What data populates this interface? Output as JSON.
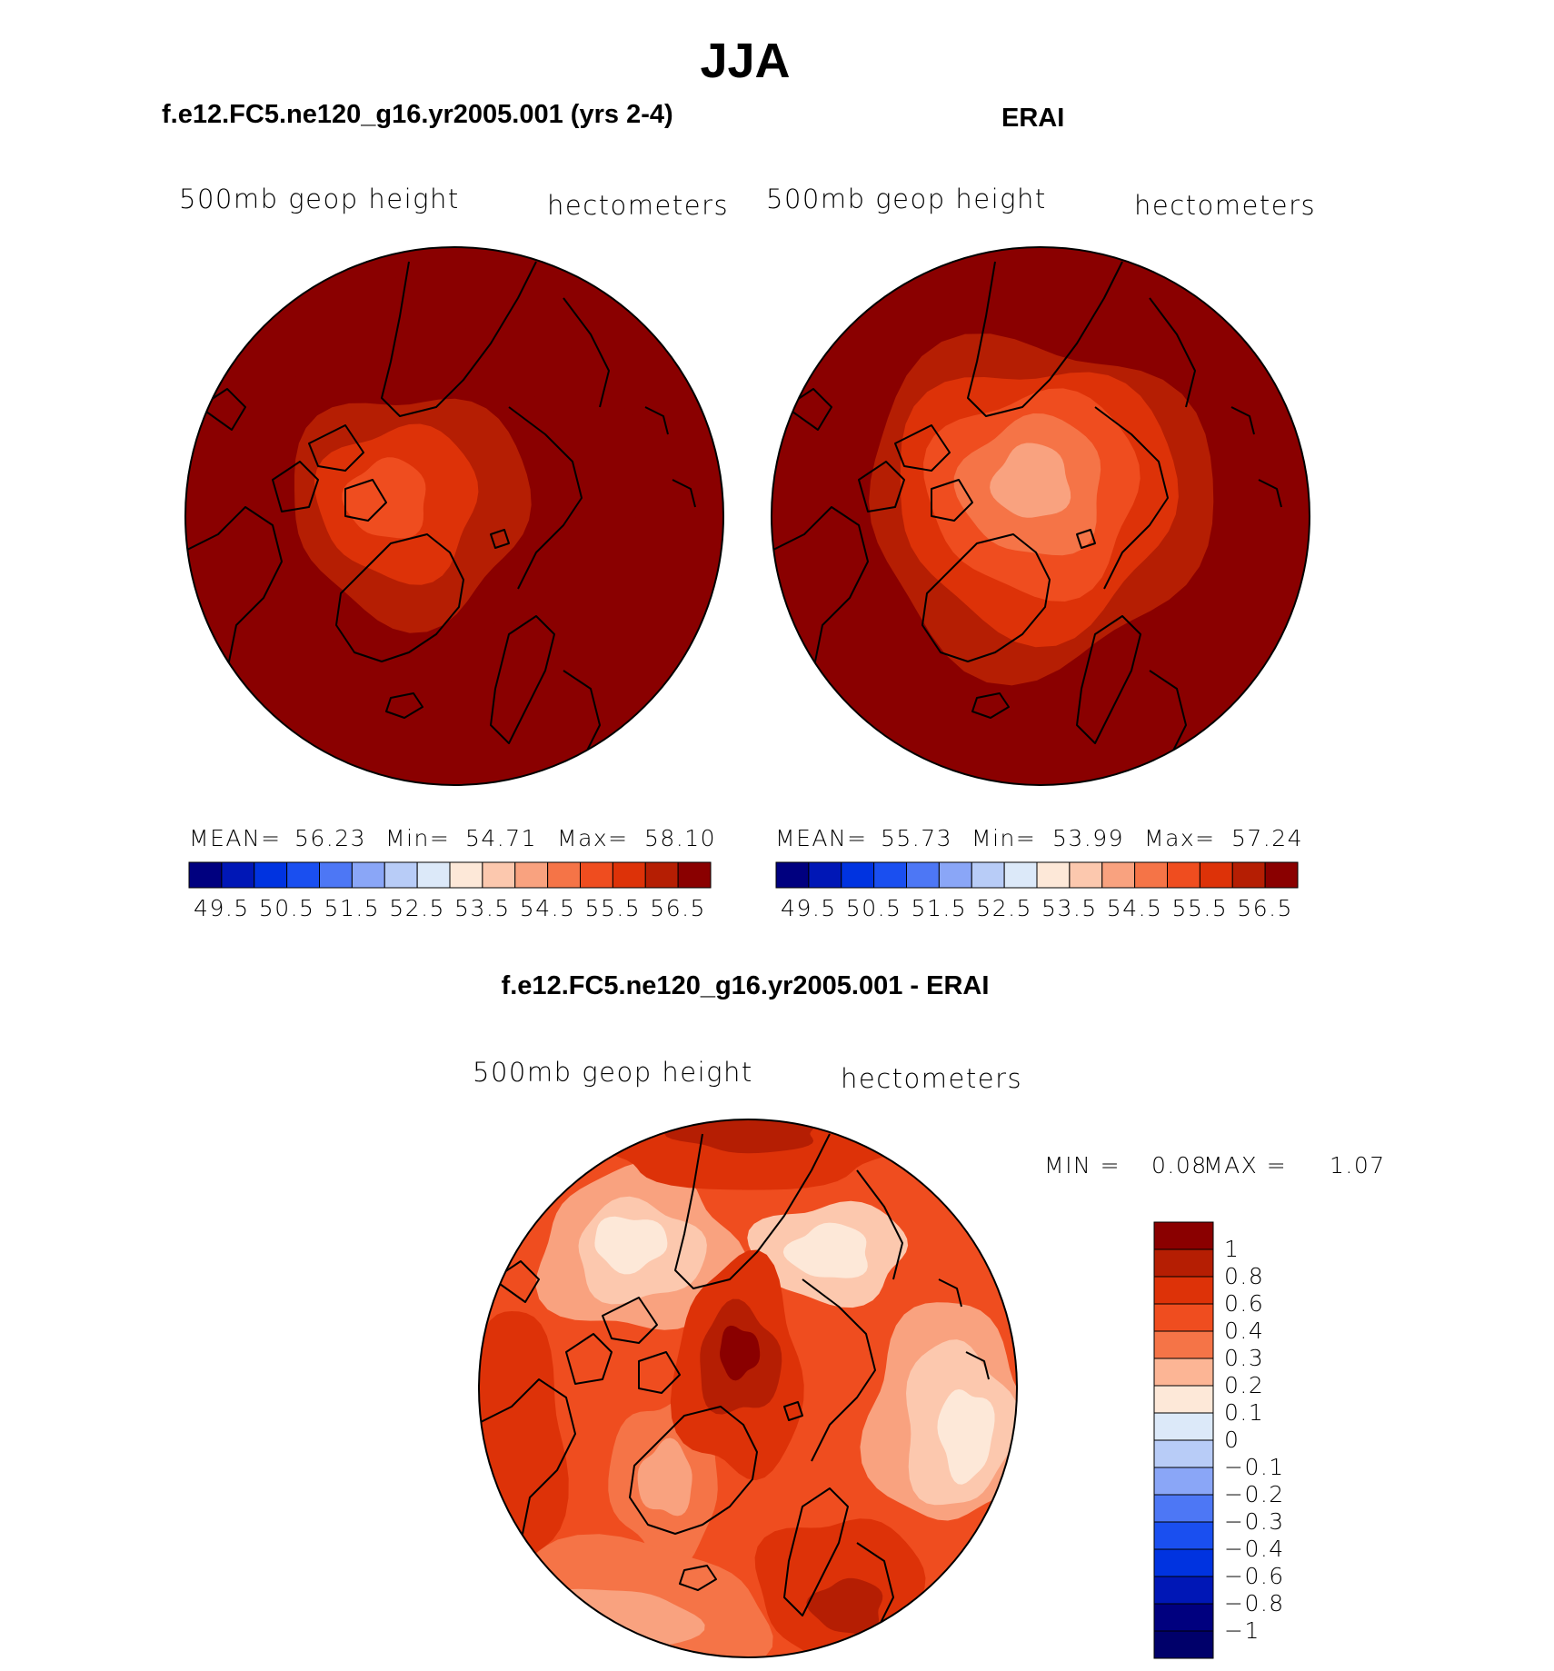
{
  "main_title": "JJA",
  "panels": {
    "model": {
      "title": "f.e12.FC5.ne120_g16.yr2005.001 (yrs 2-4)",
      "variable": "500mb geop height",
      "units": "hectometers",
      "mean_label": "MEAN=",
      "mean": "56.23",
      "min_label": "Min=",
      "min": "54.71",
      "max_label": "Max=",
      "max": "58.10"
    },
    "obs": {
      "title": "ERAI",
      "variable": "500mb geop height",
      "units": "hectometers",
      "mean_label": "MEAN=",
      "mean": "55.73",
      "min_label": "Min=",
      "min": "53.99",
      "max_label": "Max=",
      "max": "57.24"
    },
    "diff": {
      "title": "f.e12.FC5.ne120_g16.yr2005.001 - ERAI",
      "variable": "500mb geop height",
      "units": "hectometers",
      "min_label": "MIN =",
      "min": "0.08",
      "max_label": "MAX =",
      "max": "1.07"
    }
  },
  "chart_data": [
    {
      "type": "heatmap",
      "name": "model",
      "projection": "north polar stereographic",
      "colorbar_levels": [
        "49.5",
        "50.5",
        "51.5",
        "52.5",
        "53.5",
        "54.5",
        "55.5",
        "56.5"
      ],
      "colorbar_colors": [
        "#00007f",
        "#0017b6",
        "#0033e0",
        "#1a4ff0",
        "#4d77f5",
        "#8aa6f7",
        "#b8ccf7",
        "#dce9f9",
        "#fde8d8",
        "#fcc8ae",
        "#f9a27f",
        "#f57447",
        "#ef4d1f",
        "#dd3208",
        "#b51e03",
        "#8a0000"
      ],
      "field_levels": [
        58.0,
        57.0,
        56.5,
        56.0,
        55.5,
        55.0
      ],
      "mean": 56.23,
      "min": 54.71,
      "max": 58.1
    },
    {
      "type": "heatmap",
      "name": "obs",
      "projection": "north polar stereographic",
      "colorbar_levels": [
        "49.5",
        "50.5",
        "51.5",
        "52.5",
        "53.5",
        "54.5",
        "55.5",
        "56.5"
      ],
      "colorbar_colors": [
        "#00007f",
        "#0017b6",
        "#0033e0",
        "#1a4ff0",
        "#4d77f5",
        "#8aa6f7",
        "#b8ccf7",
        "#dce9f9",
        "#fde8d8",
        "#fcc8ae",
        "#f9a27f",
        "#f57447",
        "#ef4d1f",
        "#dd3208",
        "#b51e03",
        "#8a0000"
      ],
      "field_levels": [
        57.0,
        56.5,
        56.0,
        55.5,
        55.0,
        54.5,
        54.0
      ],
      "mean": 55.73,
      "min": 53.99,
      "max": 57.24
    },
    {
      "type": "heatmap",
      "name": "difference",
      "projection": "north polar stereographic",
      "colorbar_levels": [
        "1",
        "0.8",
        "0.6",
        "0.4",
        "0.3",
        "0.2",
        "0.1",
        "0",
        "−0.1",
        "−0.2",
        "−0.3",
        "−0.4",
        "−0.6",
        "−0.8",
        "−1"
      ],
      "colorbar_colors": [
        "#8a0000",
        "#b51e03",
        "#dd3208",
        "#ef4d1f",
        "#f57447",
        "#fcb595",
        "#fde8d8",
        "#dce9f9",
        "#b8ccf7",
        "#8aa6f7",
        "#4d77f5",
        "#1a4ff0",
        "#0033e0",
        "#0017b6",
        "#00007f",
        "#00006a"
      ],
      "min": 0.08,
      "max": 1.07
    }
  ]
}
